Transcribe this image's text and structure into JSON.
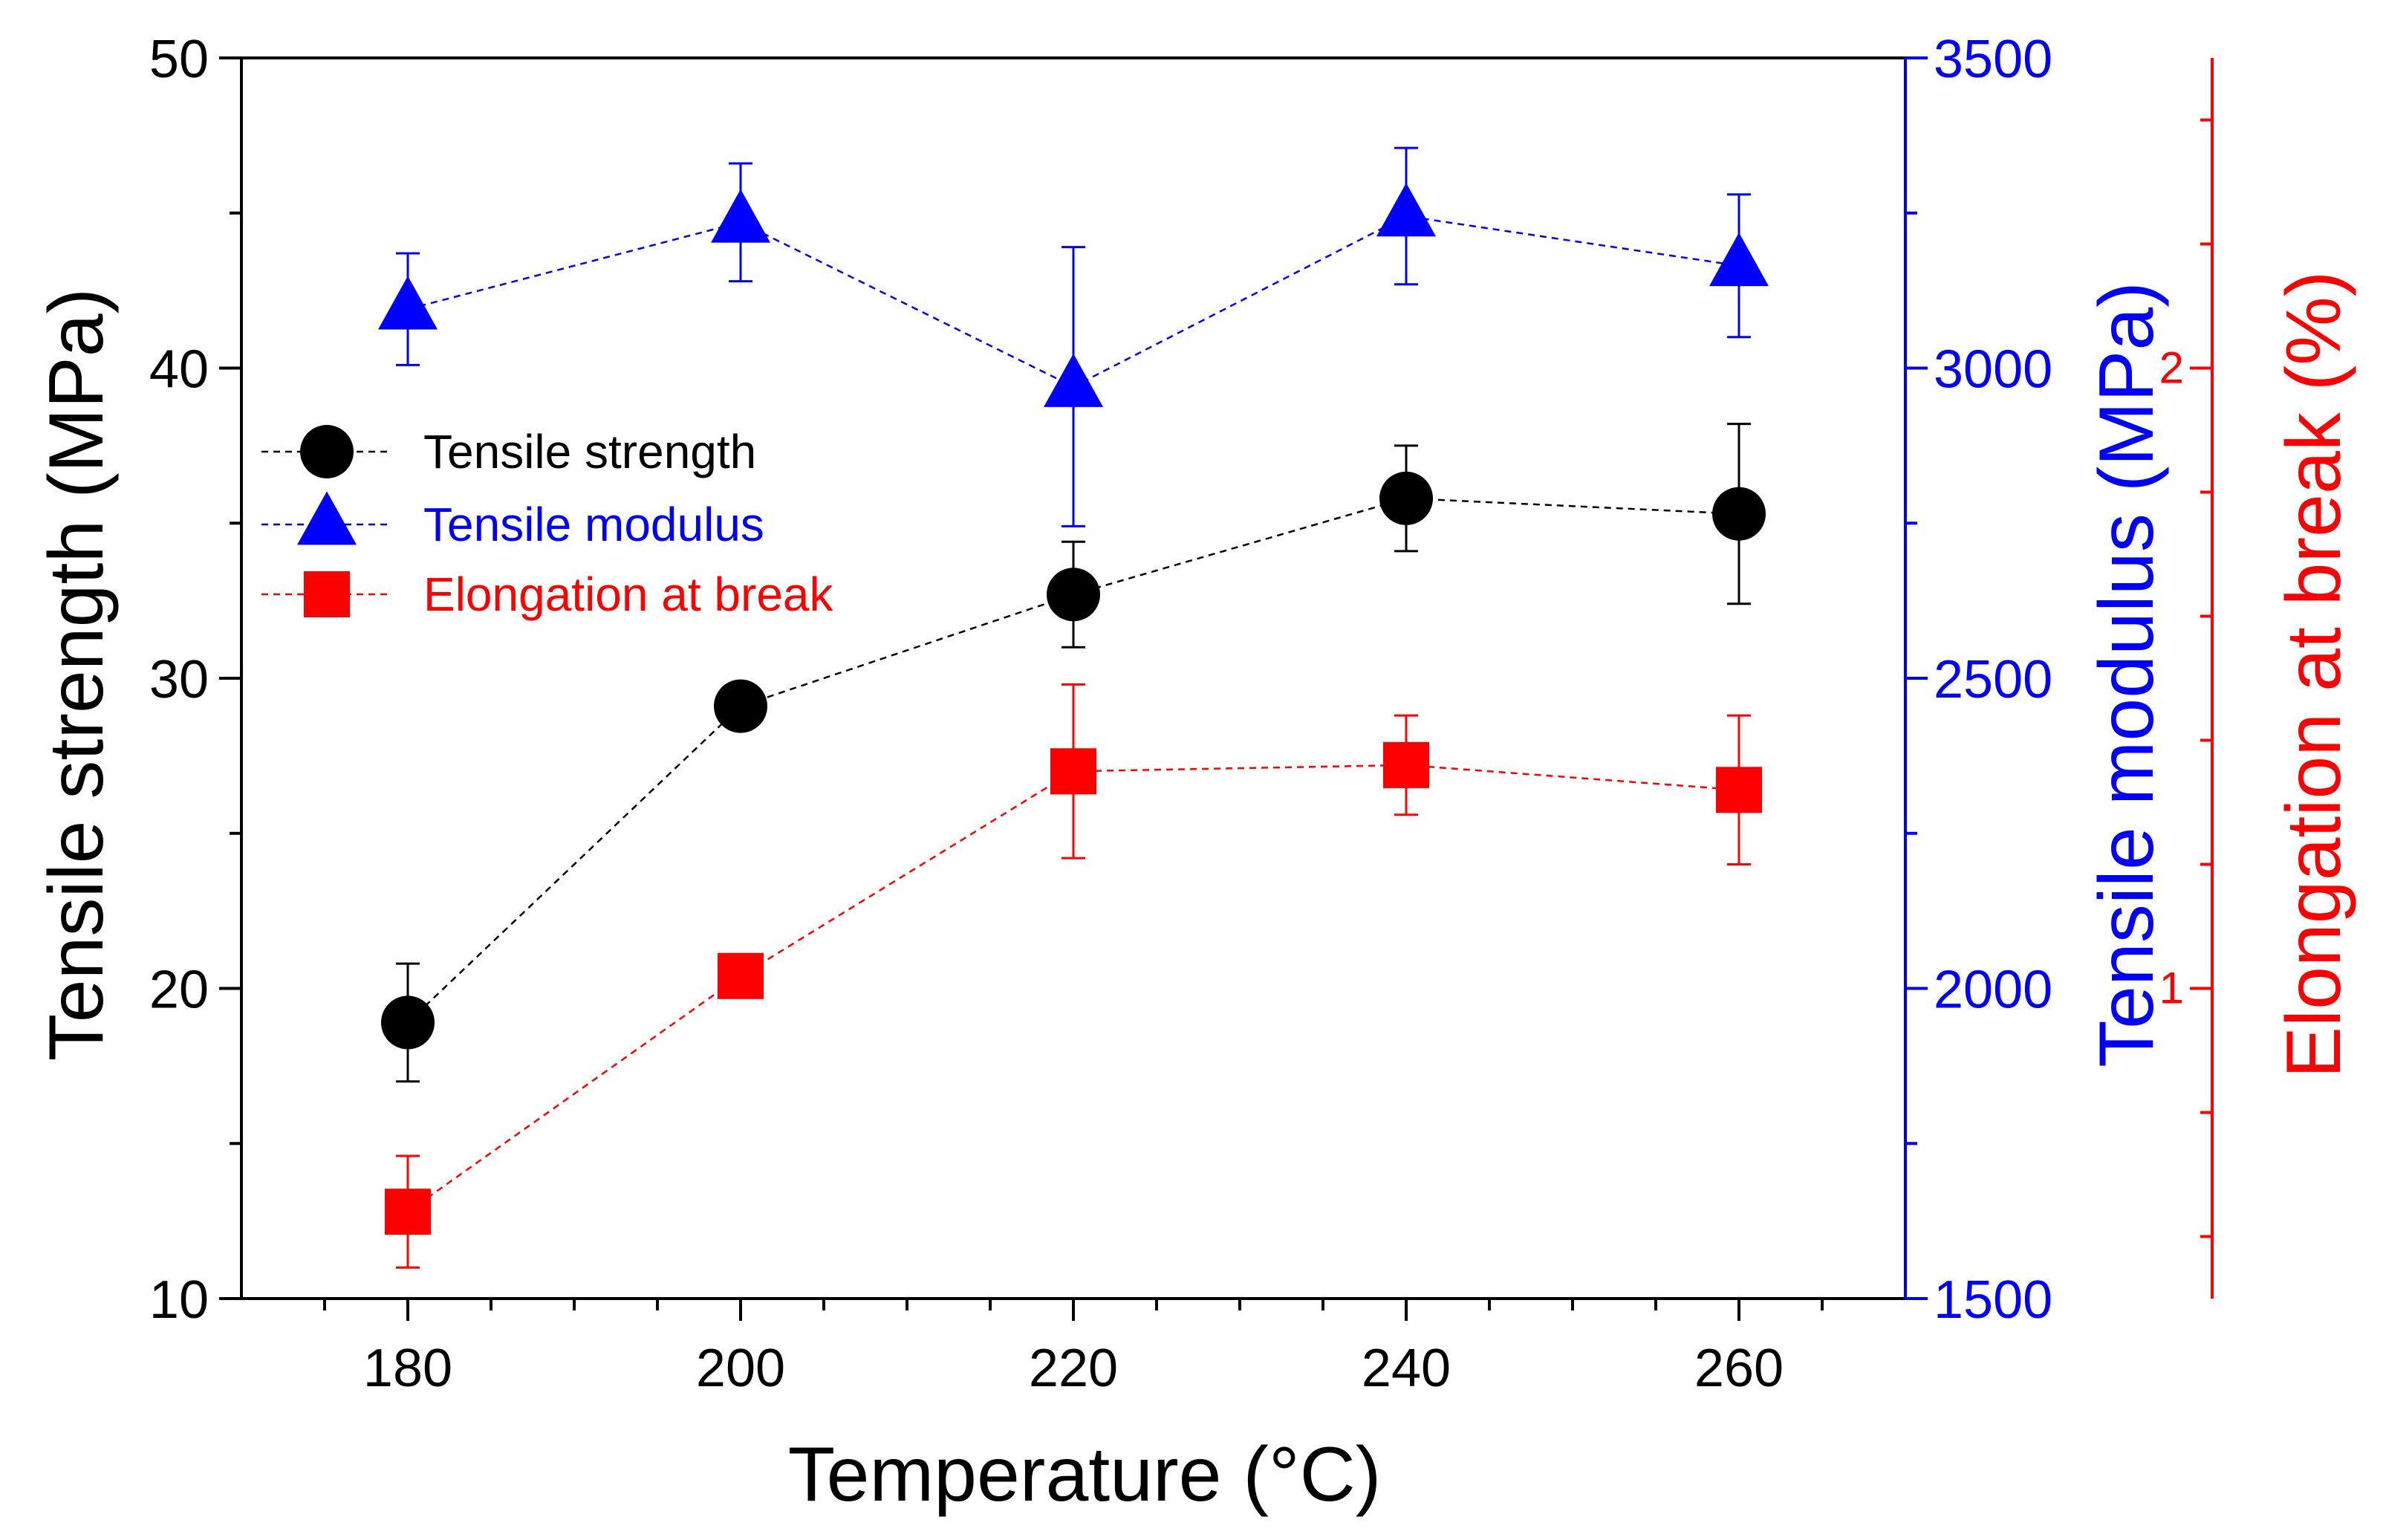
{
  "chart_data": {
    "type": "line",
    "x": [
      180,
      200,
      220,
      240,
      260
    ],
    "xlabel": "Temperature (°C)",
    "xlim": [
      170,
      270
    ],
    "xticks": [
      180,
      200,
      220,
      240,
      260
    ],
    "x_minor_step": 5,
    "legend_position": "upper-left",
    "grid": false,
    "axes": [
      {
        "id": "left",
        "label": "Tensile strength (MPa)",
        "ylim": [
          10,
          50
        ],
        "ticks": [
          10,
          20,
          30,
          40,
          50
        ],
        "minor_step": 5,
        "color": "#000000"
      },
      {
        "id": "right1",
        "label": "Tensile modulus (MPa)",
        "ylim": [
          1500,
          3500
        ],
        "ticks": [
          1500,
          2000,
          2500,
          3000,
          3500
        ],
        "minor_step": 250,
        "color": "#0000ff"
      },
      {
        "id": "right2",
        "label": "Elongation at break (%)",
        "ylim": [
          0.5,
          2.5
        ],
        "ticks": [
          1,
          2
        ],
        "tick_labels": [
          "1",
          "2"
        ],
        "minor_step": 0.2,
        "color": "#ff0000"
      }
    ],
    "series": [
      {
        "name": "Tensile strength",
        "axis": "left",
        "marker": "circle",
        "color": "#000000",
        "values": [
          18.9,
          29.1,
          32.7,
          35.8,
          35.3
        ],
        "errors": [
          1.9,
          0.4,
          1.7,
          1.7,
          2.9
        ]
      },
      {
        "name": "Tensile modulus",
        "axis": "right1",
        "marker": "triangle",
        "color": "#0000ff",
        "values": [
          3095,
          3235,
          2970,
          3245,
          3165
        ],
        "errors": [
          90,
          95,
          225,
          110,
          115
        ]
      },
      {
        "name": "Elongation at break",
        "axis": "right2",
        "marker": "square",
        "color": "#ff0000",
        "values": [
          0.64,
          1.02,
          1.35,
          1.36,
          1.32
        ],
        "errors": [
          0.09,
          0.02,
          0.14,
          0.08,
          0.12
        ]
      }
    ]
  }
}
